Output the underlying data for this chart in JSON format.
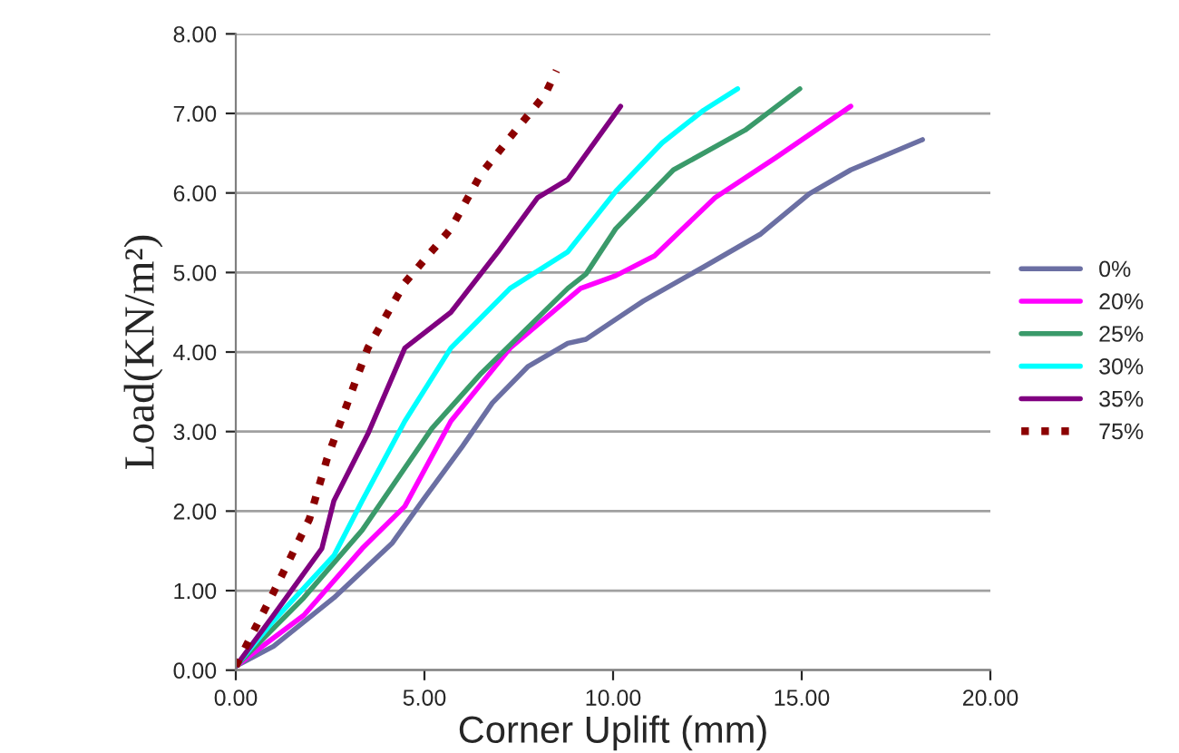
{
  "chart_data": {
    "type": "line",
    "xlabel": "Corner Uplift (mm)",
    "ylabel": "Load(KN/m²)",
    "xlim": [
      0,
      20
    ],
    "ylim": [
      0,
      8
    ],
    "xticks": [
      {
        "value": 0,
        "label": "0.00"
      },
      {
        "value": 5,
        "label": "5.00"
      },
      {
        "value": 10,
        "label": "10.00"
      },
      {
        "value": 15,
        "label": "15.00"
      },
      {
        "value": 20,
        "label": "20.00"
      }
    ],
    "yticks": [
      {
        "value": 0,
        "label": "0.00"
      },
      {
        "value": 1,
        "label": "1.00"
      },
      {
        "value": 2,
        "label": "2.00"
      },
      {
        "value": 3,
        "label": "3.00"
      },
      {
        "value": 4,
        "label": "4.00"
      },
      {
        "value": 5,
        "label": "5.00"
      },
      {
        "value": 6,
        "label": "6.00"
      },
      {
        "value": 7,
        "label": "7.00"
      },
      {
        "value": 8,
        "label": "8.00"
      }
    ],
    "grid": "y",
    "legend": "right",
    "marker": "none",
    "series": [
      {
        "name": "0%",
        "color": "#6b6fa3",
        "line_style": "solid",
        "x": [
          0,
          1.0,
          2.6,
          4.15,
          4.95,
          6.0,
          6.8,
          7.75,
          8.8,
          9.28,
          10.35,
          10.8,
          12.4,
          13.9,
          15.2,
          16.3,
          18.2
        ],
        "values": [
          0.05,
          0.3,
          0.91,
          1.6,
          2.13,
          2.81,
          3.36,
          3.82,
          4.11,
          4.16,
          4.5,
          4.64,
          5.07,
          5.48,
          5.99,
          6.29,
          6.67
        ]
      },
      {
        "name": "20%",
        "color": "#ff00ff",
        "line_style": "solid",
        "x": [
          0,
          1.8,
          3.35,
          4.48,
          5.7,
          7.27,
          9.14,
          10.07,
          11.1,
          12.7,
          14.3,
          16.3
        ],
        "values": [
          0.05,
          0.69,
          1.53,
          2.06,
          3.13,
          4.05,
          4.8,
          4.96,
          5.21,
          5.94,
          6.44,
          7.09
        ]
      },
      {
        "name": "25%",
        "color": "#3a9a6a",
        "line_style": "solid",
        "x": [
          0,
          1.8,
          3.35,
          5.2,
          6.5,
          8.8,
          9.28,
          10.07,
          11.6,
          13.5,
          14.95
        ],
        "values": [
          0.05,
          0.91,
          1.76,
          3.04,
          3.73,
          4.8,
          4.98,
          5.55,
          6.29,
          6.79,
          7.31
        ]
      },
      {
        "name": "30%",
        "color": "#00ffff",
        "line_style": "solid",
        "x": [
          0,
          1.0,
          2.6,
          3.35,
          4.48,
          5.7,
          7.27,
          8.8,
          10.07,
          11.3,
          12.4,
          13.3
        ],
        "values": [
          0.05,
          0.62,
          1.44,
          2.13,
          3.13,
          4.05,
          4.8,
          5.26,
          6.02,
          6.63,
          7.04,
          7.31
        ]
      },
      {
        "name": "35%",
        "color": "#800080",
        "line_style": "solid",
        "x": [
          0,
          1.0,
          2.28,
          2.6,
          3.5,
          4.48,
          5.7,
          6.95,
          8.0,
          8.8,
          10.2
        ],
        "values": [
          0.05,
          0.69,
          1.53,
          2.13,
          2.97,
          4.05,
          4.5,
          5.26,
          5.94,
          6.17,
          7.09
        ]
      },
      {
        "name": "75%",
        "color": "#8b0000",
        "line_style": "dotted",
        "x": [
          0,
          1.0,
          1.95,
          2.42,
          3.07,
          3.5,
          4.48,
          5.7,
          6.5,
          7.27,
          8.2,
          8.5
        ],
        "values": [
          0.05,
          0.98,
          1.9,
          2.66,
          3.5,
          4.05,
          4.87,
          5.55,
          6.24,
          6.7,
          7.24,
          7.54
        ]
      }
    ]
  }
}
